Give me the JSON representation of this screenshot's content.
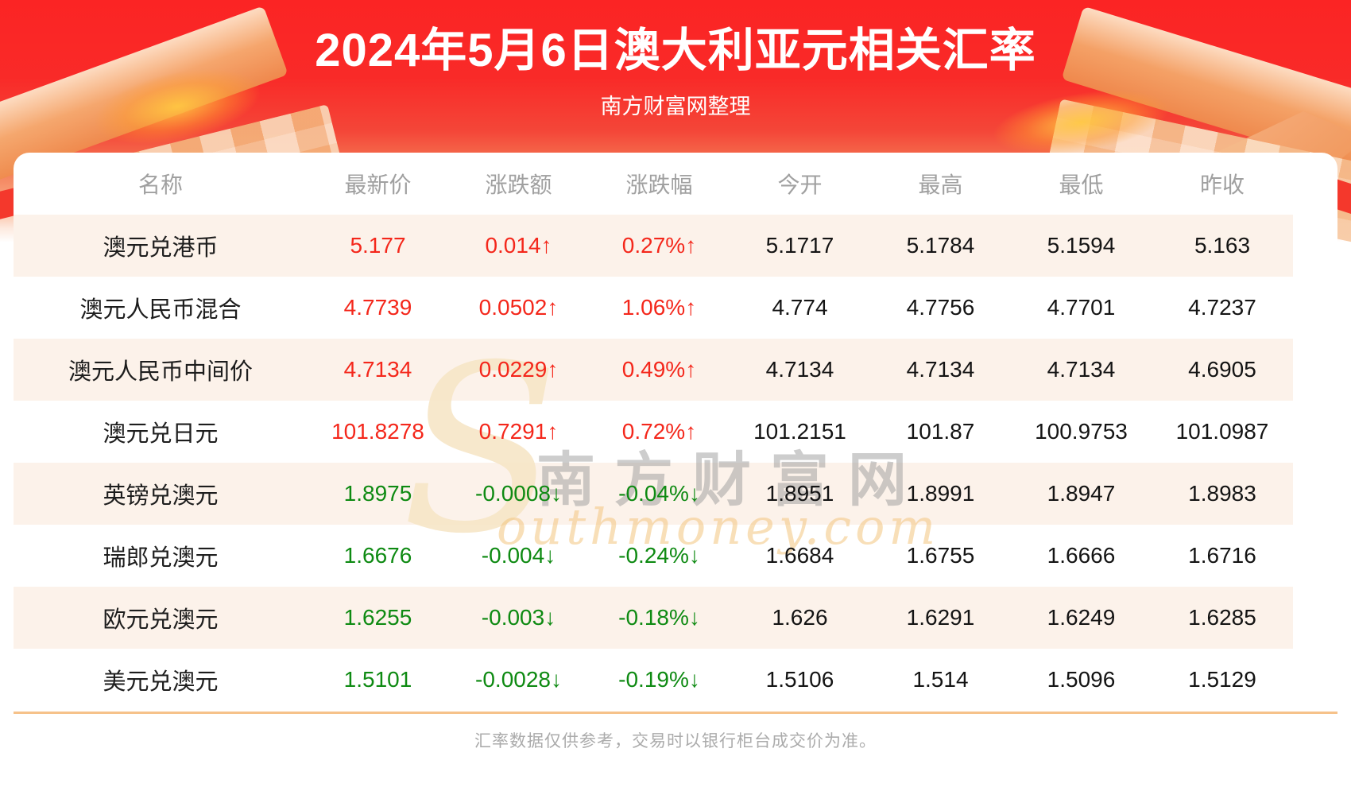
{
  "page": {
    "title": "2024年5月6日澳大利亚元相关汇率",
    "subtitle": "南方财富网整理",
    "footer_note": "汇率数据仅供参考，交易时以银行柜台成交价为准。"
  },
  "watermark": {
    "initial": "S",
    "cn": "南方财富网",
    "en": "outhmoney.com"
  },
  "colors": {
    "banner_red": "#fa2828",
    "up_red": "#f4271b",
    "down_green": "#0e8a12",
    "row_alt_bg": "#fcf2ea",
    "divider_orange": "#f6c28a",
    "header_grey": "#a0a0a0",
    "ingot_orange": "#ef8c4e"
  },
  "table": {
    "headers": [
      "名称",
      "最新价",
      "涨跌额",
      "涨跌幅",
      "今开",
      "最高",
      "最低",
      "昨收"
    ],
    "arrow_up": "↑",
    "arrow_down": "↓",
    "rows": [
      {
        "name": "澳元兑港币",
        "last": "5.177",
        "change": "0.014",
        "pct": "0.27%",
        "direction": "up",
        "open": "5.1717",
        "high": "5.1784",
        "low": "5.1594",
        "prev_close": "5.163"
      },
      {
        "name": "澳元人民币混合",
        "last": "4.7739",
        "change": "0.0502",
        "pct": "1.06%",
        "direction": "up",
        "open": "4.774",
        "high": "4.7756",
        "low": "4.7701",
        "prev_close": "4.7237"
      },
      {
        "name": "澳元人民币中间价",
        "last": "4.7134",
        "change": "0.0229",
        "pct": "0.49%",
        "direction": "up",
        "open": "4.7134",
        "high": "4.7134",
        "low": "4.7134",
        "prev_close": "4.6905"
      },
      {
        "name": "澳元兑日元",
        "last": "101.8278",
        "change": "0.7291",
        "pct": "0.72%",
        "direction": "up",
        "open": "101.2151",
        "high": "101.87",
        "low": "100.9753",
        "prev_close": "101.0987"
      },
      {
        "name": "英镑兑澳元",
        "last": "1.8975",
        "change": "-0.0008",
        "pct": "-0.04%",
        "direction": "down",
        "open": "1.8951",
        "high": "1.8991",
        "low": "1.8947",
        "prev_close": "1.8983"
      },
      {
        "name": "瑞郎兑澳元",
        "last": "1.6676",
        "change": "-0.004",
        "pct": "-0.24%",
        "direction": "down",
        "open": "1.6684",
        "high": "1.6755",
        "low": "1.6666",
        "prev_close": "1.6716"
      },
      {
        "name": "欧元兑澳元",
        "last": "1.6255",
        "change": "-0.003",
        "pct": "-0.18%",
        "direction": "down",
        "open": "1.626",
        "high": "1.6291",
        "low": "1.6249",
        "prev_close": "1.6285"
      },
      {
        "name": "美元兑澳元",
        "last": "1.5101",
        "change": "-0.0028",
        "pct": "-0.19%",
        "direction": "down",
        "open": "1.5106",
        "high": "1.514",
        "low": "1.5096",
        "prev_close": "1.5129"
      }
    ]
  }
}
